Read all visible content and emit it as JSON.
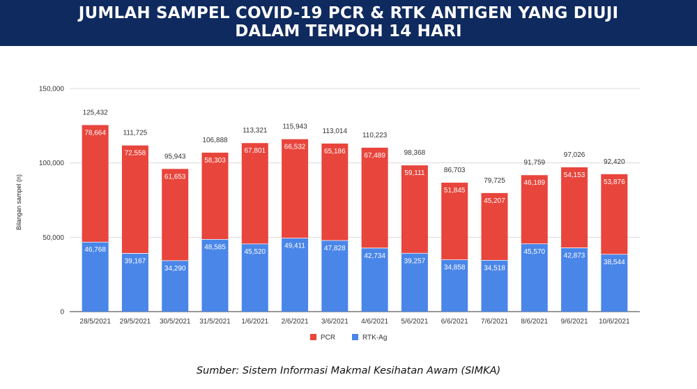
{
  "header": {
    "line1": "JUMLAH SAMPEL COVID-19 PCR & RTK ANTIGEN YANG DIUJI",
    "line2": "DALAM TEMPOH 14 HARI"
  },
  "source": "Sumber: Sistem Informasi Makmal Kesihatan Awam (SIMKA)",
  "chart_data": {
    "type": "bar",
    "stacked": true,
    "title": "JUMLAH SAMPEL COVID-19 PCR & RTK ANTIGEN YANG DIUJI DALAM TEMPOH 14 HARI",
    "xlabel": "",
    "ylabel": "Bilangan sampel (n)",
    "ylim": [
      0,
      150000
    ],
    "yticks": [
      0,
      50000,
      100000,
      150000
    ],
    "ytick_labels": [
      "0",
      "50,000",
      "100,000",
      "150,000"
    ],
    "grid": true,
    "legend_position": "bottom",
    "categories": [
      "28/5/2021",
      "29/5/2021",
      "30/5/2021",
      "31/5/2021",
      "1/6/2021",
      "2/6/2021",
      "3/6/2021",
      "4/6/2021",
      "5/6/2021",
      "6/6/2021",
      "7/6/2021",
      "8/6/2021",
      "9/6/2021",
      "10/6/2021"
    ],
    "series": [
      {
        "name": "RTK-Ag",
        "color": "#4a86e8",
        "values": [
          46768,
          39167,
          34290,
          48585,
          45520,
          49411,
          47828,
          42734,
          39257,
          34858,
          34518,
          45570,
          42873,
          38544
        ],
        "labels": [
          "46,768",
          "39,167",
          "34,290",
          "48,585",
          "45,520",
          "49,411",
          "47,828",
          "42,734",
          "39,257",
          "34,858",
          "34,518",
          "45,570",
          "42,873",
          "38,544"
        ]
      },
      {
        "name": "PCR",
        "color": "#e8453c",
        "values": [
          78664,
          72558,
          61653,
          58303,
          67801,
          66532,
          65186,
          67489,
          59111,
          51845,
          45207,
          46189,
          54153,
          53876
        ],
        "labels": [
          "78,664",
          "72,558",
          "61,653",
          "58,303",
          "67,801",
          "66,532",
          "65,186",
          "67,489",
          "59,111",
          "51,845",
          "45,207",
          "46,189",
          "54,153",
          "53,876"
        ]
      }
    ],
    "totals": [
      125432,
      111725,
      95943,
      106888,
      113321,
      115943,
      113014,
      110223,
      98368,
      86703,
      79725,
      91759,
      97026,
      92420
    ],
    "total_labels": [
      "125,432",
      "111,725",
      "95,943",
      "106,888",
      "113,321",
      "115,943",
      "113,014",
      "110,223",
      "98,368",
      "86,703",
      "79,725",
      "91,759",
      "97,026",
      "92,420"
    ],
    "legend": [
      {
        "name": "PCR",
        "color": "#e8453c"
      },
      {
        "name": "RTK-Ag",
        "color": "#4a86e8"
      }
    ]
  }
}
